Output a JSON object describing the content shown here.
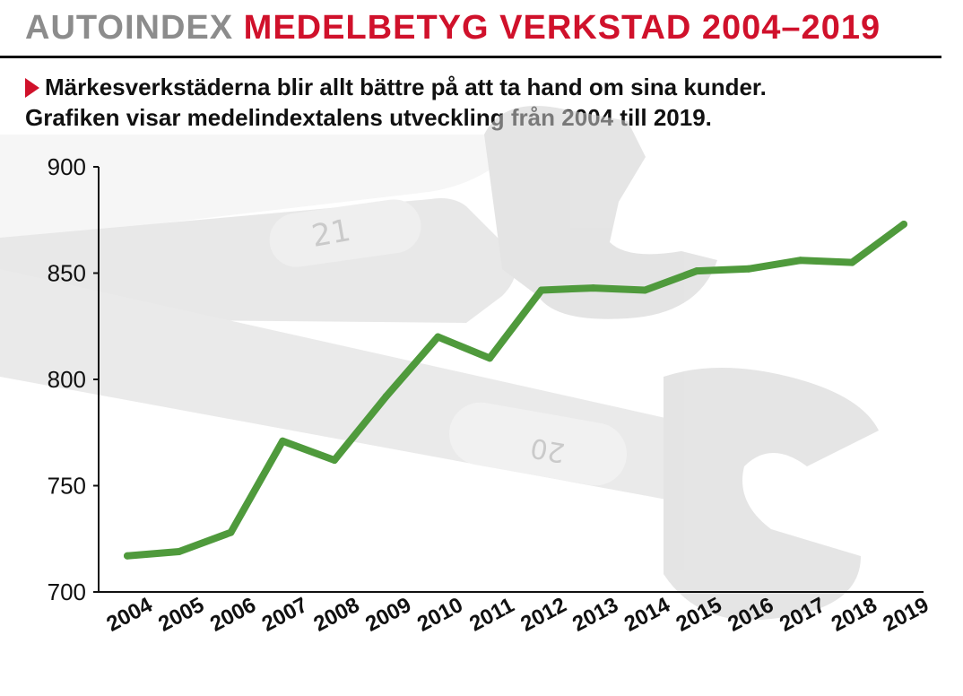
{
  "header": {
    "brand": "AUTOINDEX",
    "title": "MEDELBETYG VERKSTAD 2004–2019",
    "subtitle_line1": "Märkesverkstäderna blir allt bättre på att ta hand om sina kunder.",
    "subtitle_line2": "Grafiken visar medelindextalens utveckling från 2004 till 2019."
  },
  "colors": {
    "brand": "#8c8c8c",
    "accent": "#d0112b",
    "line": "#4f9a3c",
    "background_art": "#dcdcdc"
  },
  "background_art": {
    "description_icons": [
      "wrench-21",
      "wrench-20"
    ],
    "labels": [
      "21",
      "20"
    ]
  },
  "chart_data": {
    "type": "line",
    "x": [
      "2004",
      "2005",
      "2006",
      "2007",
      "2008",
      "2009",
      "2010",
      "2011",
      "2012",
      "2013",
      "2014",
      "2015",
      "2016",
      "2017",
      "2018",
      "2019"
    ],
    "series": [
      {
        "values": [
          717,
          719,
          728,
          771,
          762,
          792,
          820,
          810,
          842,
          843,
          842,
          851,
          852,
          856,
          855,
          873
        ]
      }
    ],
    "ylim": [
      700,
      900
    ],
    "yticks": [
      700,
      750,
      800,
      850,
      900
    ],
    "xlabel": "",
    "ylabel": "",
    "grid": false
  }
}
